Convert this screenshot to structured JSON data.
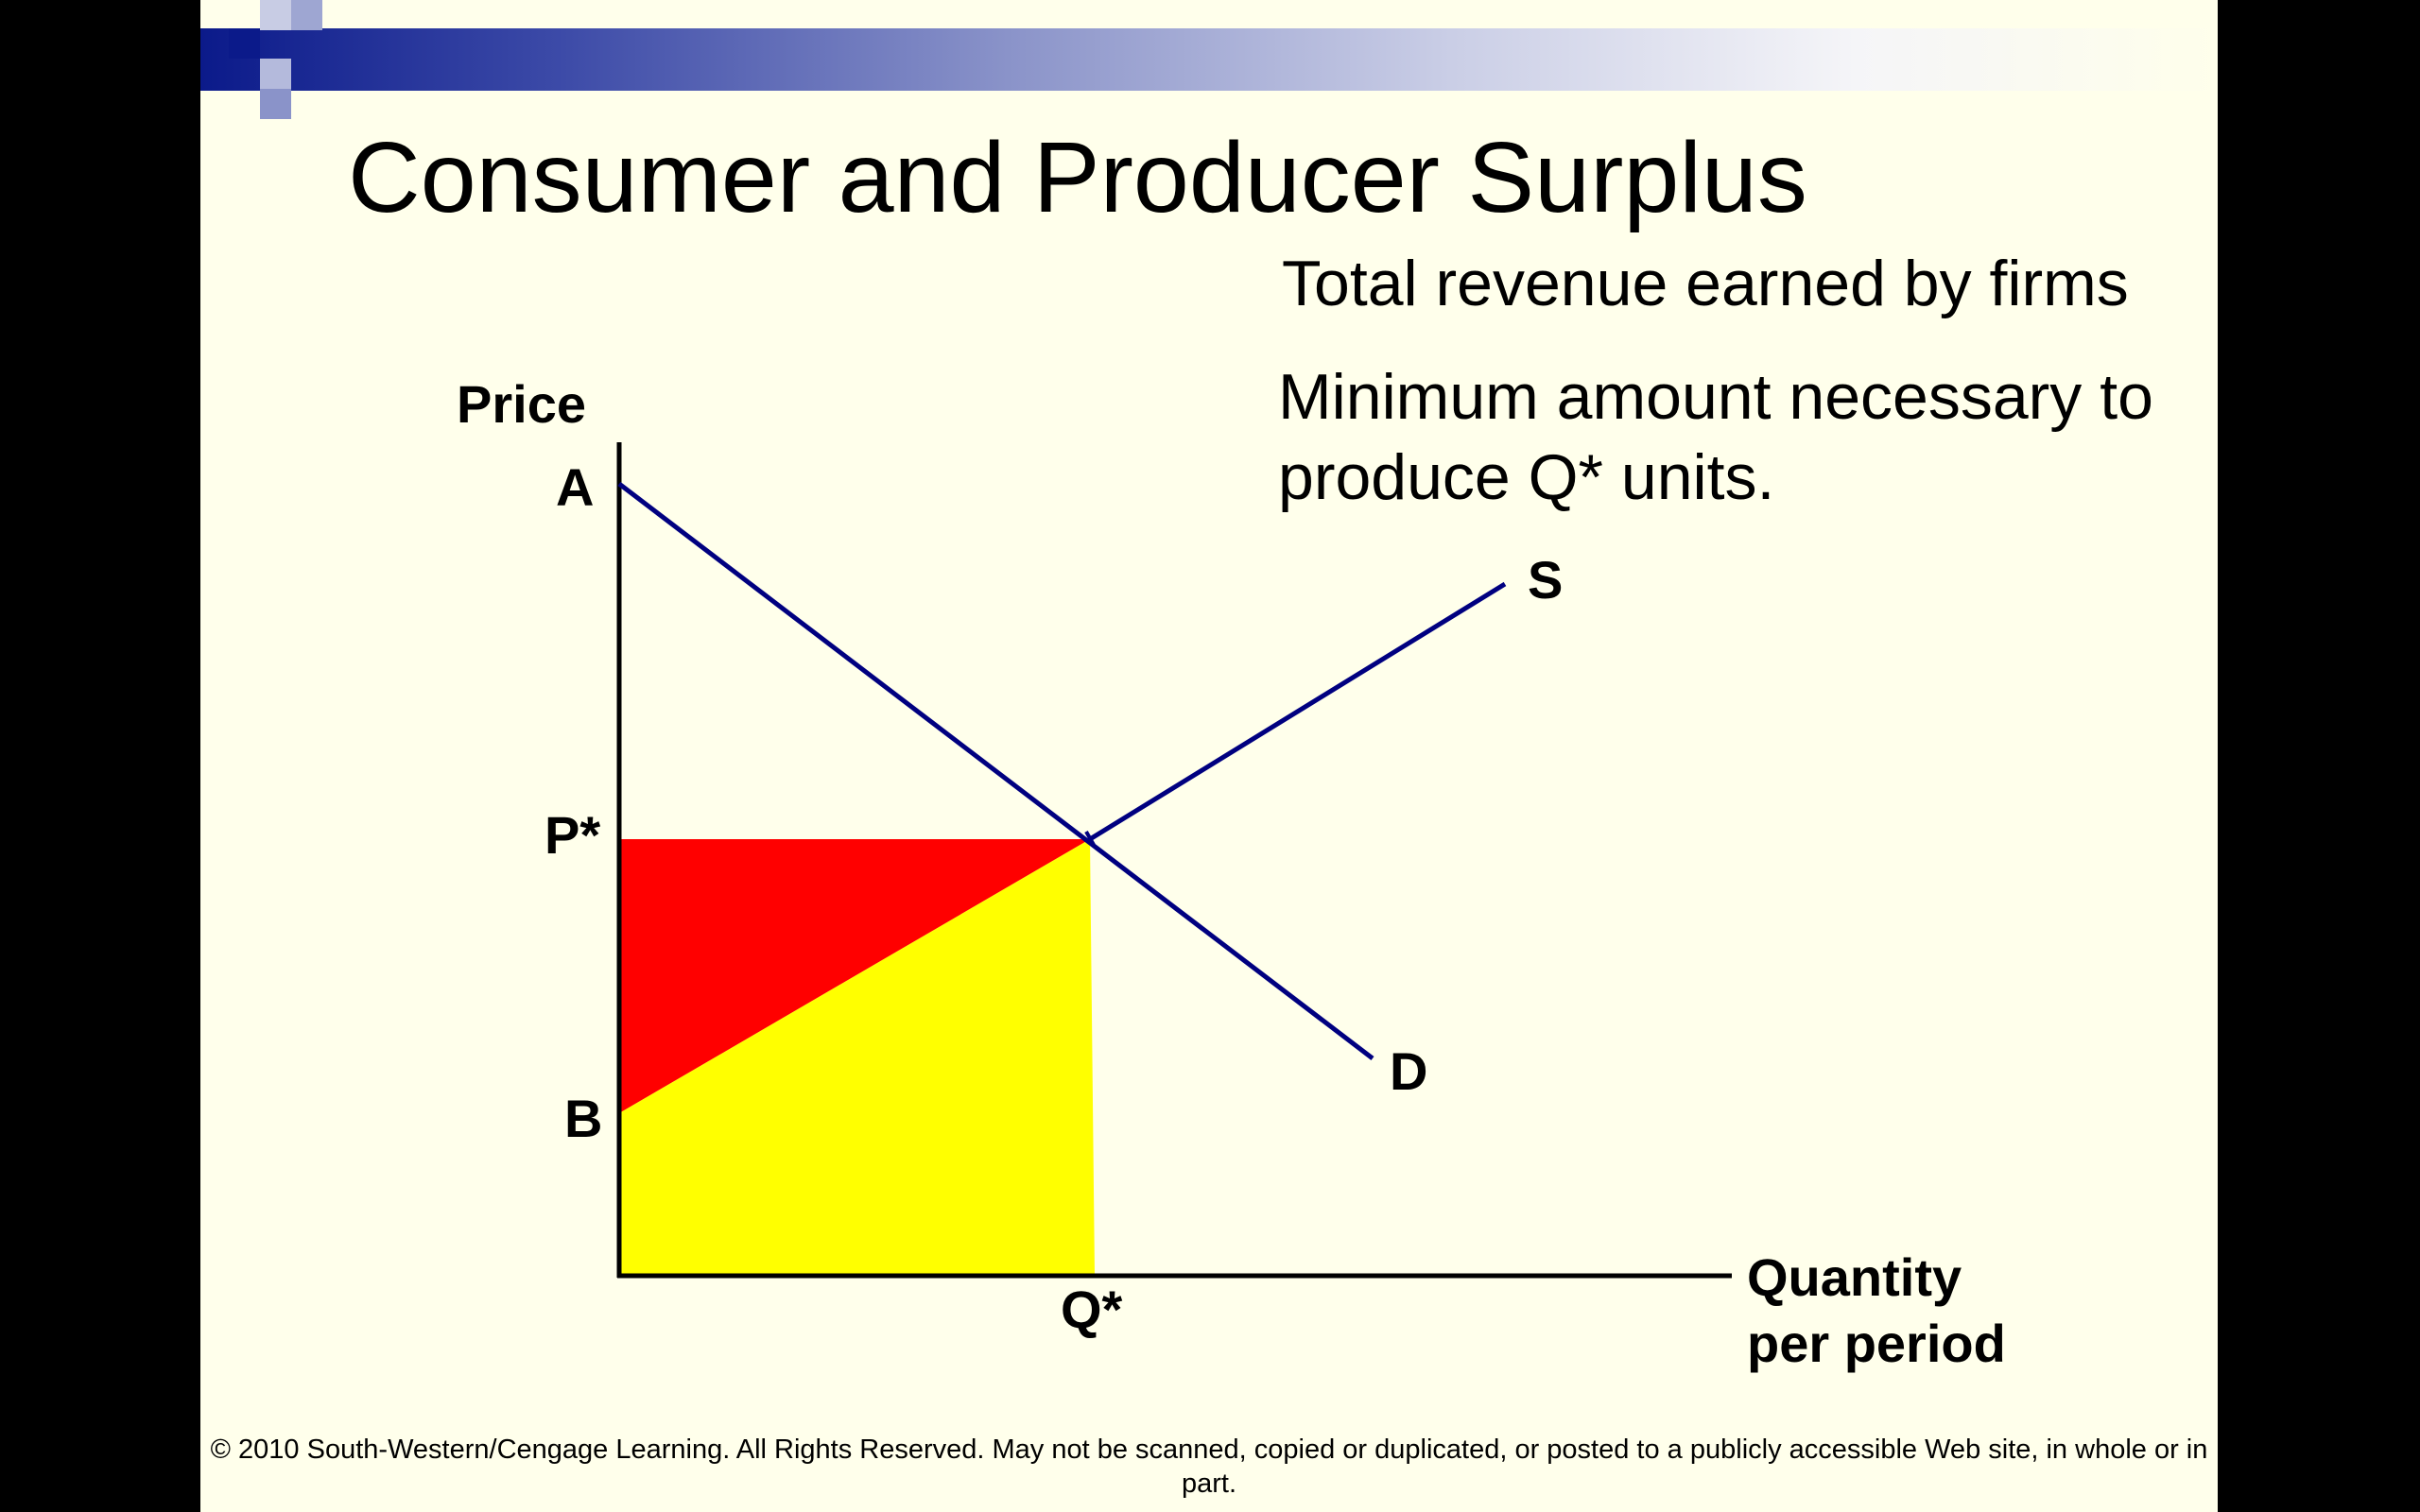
{
  "title": "Consumer and Producer Surplus",
  "notes": {
    "revenue": "Total revenue earned by firms",
    "minimum_line1": "Minimum amount necessary to",
    "minimum_line2": "produce Q* units."
  },
  "labels": {
    "price_axis": "Price",
    "point_a": "A",
    "p_star": "P*",
    "point_b": "B",
    "q_star": "Q*",
    "quantity_line1": "Quantity",
    "quantity_line2": "per period",
    "supply": "S",
    "demand": "D"
  },
  "colors": {
    "curve": "#000080",
    "area_red": "#FF0000",
    "area_yellow": "#FFFF00",
    "slide_bg": "#FFFFEB",
    "banner_dark": "#0B1A8A"
  },
  "footer": "© 2010 South-Western/Cengage Learning. All Rights Reserved. May not be scanned, copied or duplicated, or posted to a publicly accessible Web site, in whole or in part."
}
